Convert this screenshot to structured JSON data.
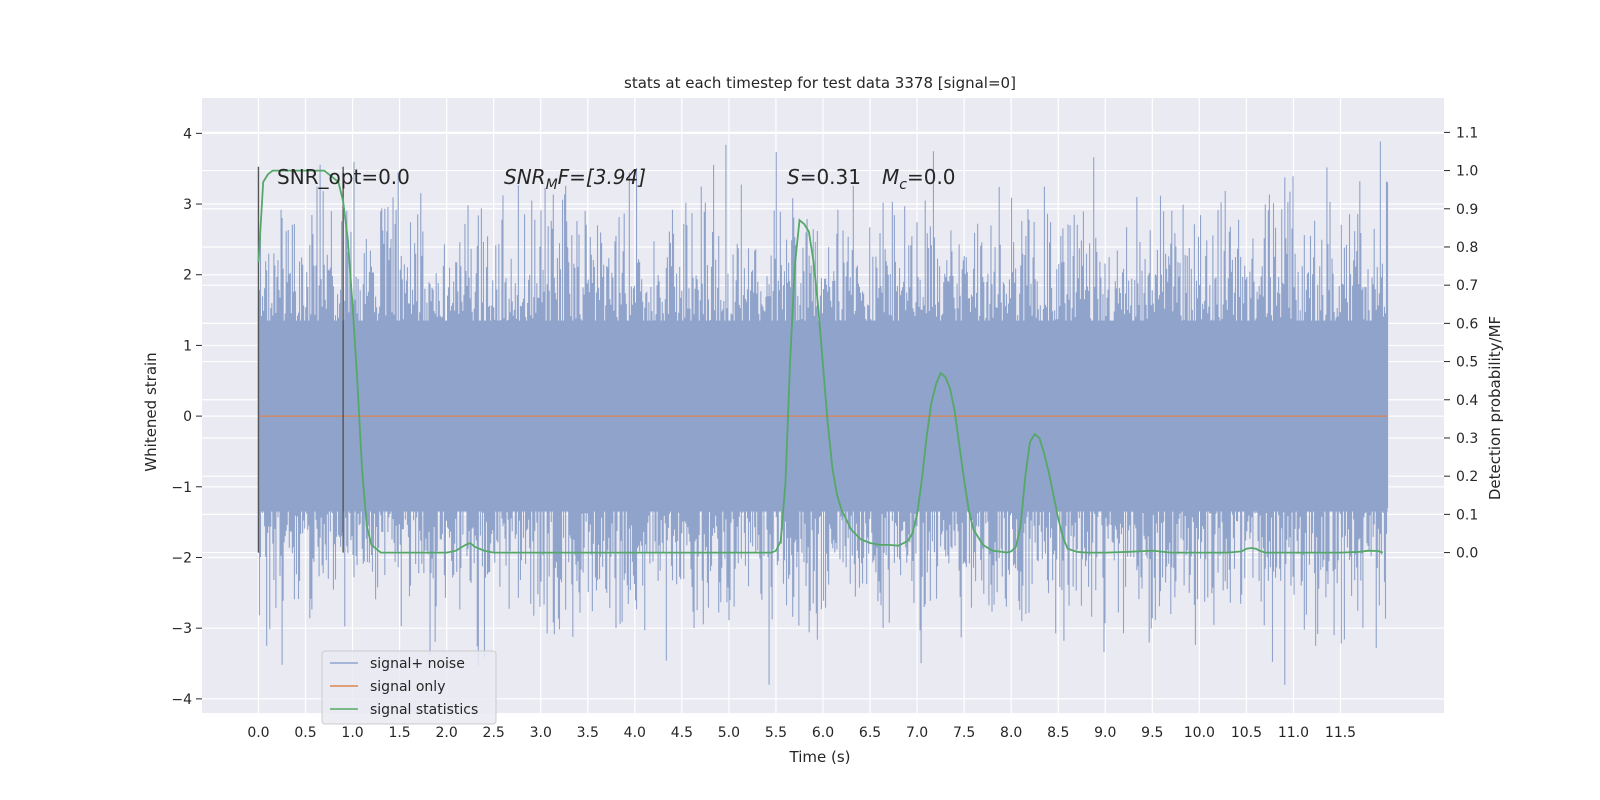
{
  "chart_data": {
    "type": "line",
    "title": "stats at each timestep for test data 3378 [signal=0]",
    "xlabel": "Time (s)",
    "ylabel": "Whitened strain",
    "ylabel_right": "Detection probability/MF",
    "xlim": [
      -0.6,
      12.6
    ],
    "ylim": [
      -4.2,
      4.5
    ],
    "ylim_right": [
      -0.42,
      1.19
    ],
    "x_ticks": [
      "0.0",
      "0.5",
      "1.0",
      "1.5",
      "2.0",
      "2.5",
      "3.0",
      "3.5",
      "4.0",
      "4.5",
      "5.0",
      "5.5",
      "6.0",
      "6.5",
      "7.0",
      "7.5",
      "8.0",
      "8.5",
      "9.0",
      "9.5",
      "10.0",
      "10.5",
      "11.0",
      "11.5"
    ],
    "y_ticks": [
      "4",
      "3",
      "2",
      "1",
      "0",
      "−1",
      "−2",
      "−3",
      "−4"
    ],
    "y_ticks_right": [
      "1.1",
      "1.0",
      "0.9",
      "0.8",
      "0.7",
      "0.6",
      "0.5",
      "0.4",
      "0.3",
      "0.2",
      "0.1",
      "0.0"
    ],
    "grid": true,
    "legend_position": "bottom-left",
    "annotations": {
      "snr_opt": "SNR_opt=0.0",
      "snr_mf_main": "SNR",
      "snr_mf_sub": "M",
      "snr_mf_rest": "F=[3.94]",
      "s_var": "S",
      "s_val": "=0.31",
      "mc_var": "M",
      "mc_sub": "c",
      "mc_val": "=0.0"
    },
    "series": [
      {
        "name": "signal+ noise",
        "color": "#8fa3cb",
        "x_range": [
          0.0,
          12.0
        ],
        "noise_band": [
          -1.35,
          1.35
        ],
        "spike_max": [
          -3.8,
          4.1
        ]
      },
      {
        "name": "signal only",
        "color": "#dd8452",
        "x": [
          0.0,
          12.0
        ],
        "y": [
          0.0,
          0.0
        ]
      },
      {
        "name": "signal statistics",
        "color": "#55a868",
        "axis": "right",
        "x": [
          0.0,
          0.05,
          0.1,
          0.15,
          0.2,
          0.3,
          0.4,
          0.5,
          0.6,
          0.7,
          0.75,
          0.8,
          0.85,
          0.9,
          0.95,
          1.0,
          1.05,
          1.1,
          1.15,
          1.2,
          1.3,
          1.5,
          2.0,
          2.1,
          2.2,
          2.25,
          2.3,
          2.4,
          2.5,
          3.0,
          4.0,
          5.0,
          5.45,
          5.5,
          5.55,
          5.6,
          5.65,
          5.7,
          5.75,
          5.8,
          5.85,
          5.9,
          5.95,
          6.0,
          6.05,
          6.1,
          6.15,
          6.2,
          6.3,
          6.4,
          6.5,
          6.6,
          6.7,
          6.8,
          6.9,
          6.95,
          7.0,
          7.05,
          7.1,
          7.15,
          7.2,
          7.25,
          7.3,
          7.35,
          7.4,
          7.45,
          7.5,
          7.55,
          7.6,
          7.7,
          7.8,
          7.9,
          7.95,
          8.0,
          8.05,
          8.1,
          8.15,
          8.2,
          8.25,
          8.3,
          8.35,
          8.4,
          8.45,
          8.5,
          8.55,
          8.6,
          8.7,
          8.8,
          9.0,
          9.25,
          9.5,
          9.7,
          10.0,
          10.3,
          10.45,
          10.5,
          10.55,
          10.6,
          10.65,
          10.7,
          10.8,
          11.0,
          11.5,
          11.7,
          11.8,
          11.9,
          11.95
        ],
        "y": [
          0.76,
          0.97,
          0.99,
          1.0,
          1.0,
          1.0,
          1.0,
          1.0,
          1.0,
          1.0,
          0.99,
          0.98,
          0.97,
          0.92,
          0.82,
          0.65,
          0.45,
          0.22,
          0.07,
          0.02,
          0.0,
          0.0,
          0.0,
          0.005,
          0.02,
          0.025,
          0.015,
          0.005,
          0.0,
          0.0,
          0.0,
          0.0,
          0.0,
          0.005,
          0.03,
          0.18,
          0.5,
          0.75,
          0.87,
          0.86,
          0.84,
          0.76,
          0.64,
          0.49,
          0.34,
          0.22,
          0.15,
          0.11,
          0.06,
          0.035,
          0.025,
          0.02,
          0.02,
          0.018,
          0.03,
          0.05,
          0.1,
          0.19,
          0.3,
          0.39,
          0.44,
          0.47,
          0.46,
          0.43,
          0.37,
          0.28,
          0.19,
          0.11,
          0.06,
          0.02,
          0.005,
          0.002,
          0.0,
          0.003,
          0.015,
          0.07,
          0.2,
          0.29,
          0.31,
          0.3,
          0.26,
          0.21,
          0.15,
          0.09,
          0.04,
          0.01,
          0.002,
          0.0,
          0.0,
          0.002,
          0.005,
          0.0,
          0.0,
          0.0,
          0.003,
          0.01,
          0.012,
          0.01,
          0.004,
          0.0,
          0.0,
          0.0,
          0.0,
          0.002,
          0.005,
          0.004,
          0.0
        ]
      }
    ]
  }
}
